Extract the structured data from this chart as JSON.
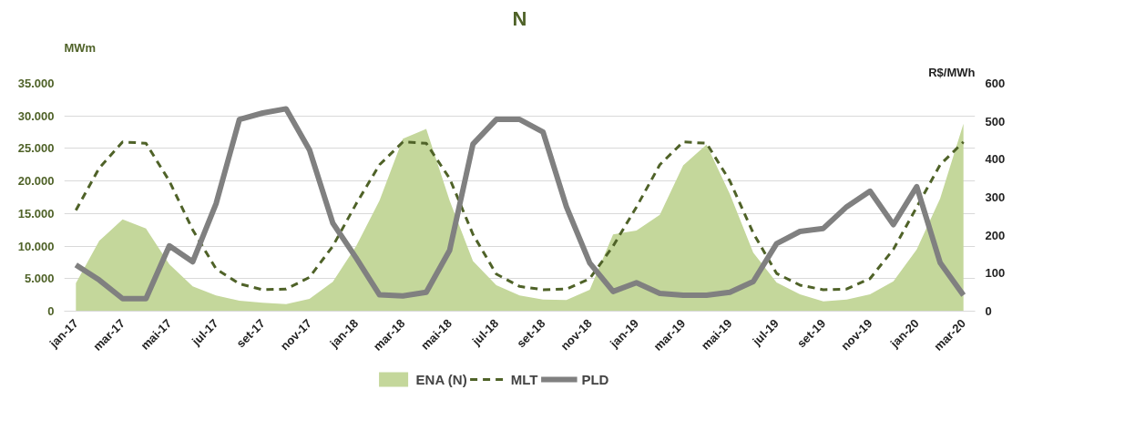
{
  "chart_data": {
    "type": "line",
    "title": "N",
    "ylabel": "MWm",
    "y2label": "R$/MWh",
    "categories": [
      "jan-17",
      null,
      "mar-17",
      null,
      "mai-17",
      null,
      "jul-17",
      null,
      "set-17",
      null,
      "nov-17",
      null,
      "jan-18",
      null,
      "mar-18",
      null,
      "mai-18",
      null,
      "jul-18",
      null,
      "set-18",
      null,
      "nov-18",
      null,
      "jan-19",
      null,
      "mar-19",
      null,
      "mai-19",
      null,
      "jul-19",
      null,
      "set-19",
      null,
      "nov-19",
      null,
      "jan-20",
      null,
      "mar-20"
    ],
    "series": [
      {
        "name": "ENA (N)",
        "type": "area",
        "color": "#c4d79b",
        "values": [
          4300,
          10800,
          14100,
          12700,
          7200,
          3800,
          2400,
          1600,
          1300,
          1100,
          1900,
          4500,
          10000,
          17000,
          26500,
          28000,
          17000,
          7700,
          4000,
          2400,
          1800,
          1700,
          3300,
          11800,
          12400,
          14800,
          22400,
          25600,
          18000,
          9000,
          4400,
          2600,
          1500,
          1800,
          2600,
          4600,
          9500,
          17300,
          28800
        ]
      },
      {
        "name": "MLT",
        "line_style": "dashed",
        "color": "#4f6228",
        "values": [
          15500,
          22000,
          26000,
          25800,
          20000,
          12500,
          6500,
          4200,
          3300,
          3400,
          5200,
          10000,
          16500,
          22500,
          26000,
          25800,
          20400,
          11800,
          5700,
          3800,
          3300,
          3400,
          5000,
          10000,
          16000,
          22500,
          26000,
          25800,
          20000,
          12000,
          5800,
          4000,
          3300,
          3400,
          5000,
          9500,
          16000,
          22500,
          26000
        ]
      },
      {
        "name": "PLD",
        "axis": "y2",
        "line_style": "solid",
        "color": "#808080",
        "values": [
          122,
          82,
          33,
          33,
          172,
          130,
          283,
          505,
          522,
          533,
          425,
          232,
          140,
          43,
          40,
          50,
          160,
          440,
          505,
          505,
          472,
          275,
          127,
          52,
          75,
          47,
          42,
          42,
          50,
          78,
          178,
          210,
          218,
          275,
          316,
          228,
          328,
          128,
          42
        ]
      }
    ],
    "ylim": [
      0,
      35000
    ],
    "yticks": [
      {
        "value": 0,
        "label": "0"
      },
      {
        "value": 5000,
        "label": "5.000"
      },
      {
        "value": 10000,
        "label": "10.000"
      },
      {
        "value": 15000,
        "label": "15.000"
      },
      {
        "value": 20000,
        "label": "20.000"
      },
      {
        "value": 25000,
        "label": "25.000"
      },
      {
        "value": 30000,
        "label": "30.000"
      },
      {
        "value": 35000,
        "label": "35.000"
      }
    ],
    "y2lim": [
      0,
      600
    ],
    "y2ticks": [
      0,
      100,
      200,
      300,
      400,
      500,
      600
    ],
    "grid": "y",
    "legend": "bottom"
  }
}
